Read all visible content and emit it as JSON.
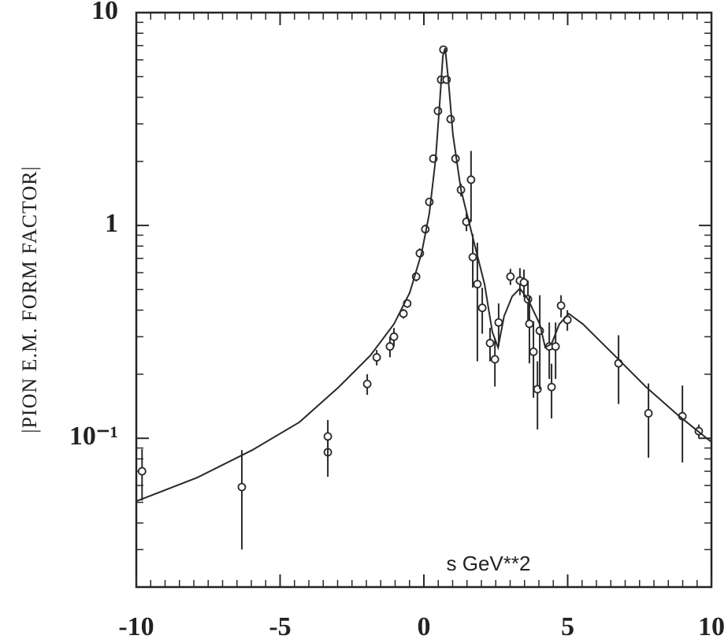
{
  "chart_data": {
    "type": "scatter",
    "ylabel": "|PION E.M. FORM FACTOR|",
    "annotation": "s GeV**2",
    "log_y": true,
    "color": "#2a2a2a",
    "xlim": [
      -10,
      10
    ],
    "ylim": [
      0.02,
      10
    ],
    "xticks": [
      -10,
      -5,
      0,
      5,
      10
    ],
    "yticks": [
      {
        "value": 0.1,
        "label": "10⁻¹"
      },
      1,
      10
    ],
    "xminorticks": [
      -9.5,
      -9,
      -8.5,
      -8,
      -7.5,
      -7,
      -6.5,
      -6,
      -5.5,
      -4.5,
      -4,
      -3.5,
      -3,
      -2.5,
      -2,
      -1.5,
      -1,
      -0.5,
      0.5,
      1,
      1.5,
      2,
      2.5,
      3,
      3.5,
      4,
      4.5,
      5.5,
      6,
      6.5,
      7,
      7.5,
      8,
      8.5,
      9,
      9.5
    ],
    "yminorticks": [
      0.03,
      0.04,
      0.05,
      0.06,
      0.07,
      0.08,
      0.09,
      0.2,
      0.3,
      0.4,
      0.5,
      0.6,
      0.7,
      0.8,
      0.9,
      2,
      3,
      4,
      5,
      6,
      7,
      8,
      9
    ],
    "series": [
      {
        "type": "scatter",
        "x": [
          -9.8,
          -6.33,
          -3.34,
          -3.34,
          -1.97,
          -1.64,
          -1.18,
          -1.04,
          -0.71,
          -0.58,
          -0.27,
          -0.14,
          0.05,
          0.19,
          0.33,
          0.49,
          0.6,
          0.68,
          0.79,
          0.93,
          1.1,
          1.29,
          1.48,
          1.64,
          1.7,
          1.86,
          2.03,
          2.3,
          2.47,
          2.6,
          3.01,
          3.34,
          3.48,
          3.62,
          3.67,
          3.81,
          3.95,
          4.03,
          4.36,
          4.44,
          4.58,
          4.77,
          4.99,
          6.77,
          7.81,
          8.99,
          9.56
        ],
        "values": [
          0.07,
          0.059,
          0.086,
          0.102,
          0.18,
          0.24,
          0.27,
          0.3,
          0.385,
          0.43,
          0.575,
          0.74,
          0.96,
          1.29,
          2.06,
          3.45,
          4.84,
          6.7,
          4.84,
          3.16,
          2.06,
          1.47,
          1.04,
          1.64,
          0.71,
          0.53,
          0.41,
          0.28,
          0.235,
          0.35,
          0.575,
          0.55,
          0.54,
          0.45,
          0.345,
          0.255,
          0.17,
          0.32,
          0.27,
          0.174,
          0.27,
          0.42,
          0.36,
          0.225,
          0.131,
          0.127,
          0.108
        ],
        "errors": [
          0.019,
          0.029,
          0.02,
          0.02,
          0.02,
          0.02,
          0.03,
          0.03,
          0.02,
          0.02,
          0.03,
          0.04,
          0.05,
          0.06,
          0.08,
          0.1,
          0.15,
          0.2,
          0.15,
          0.1,
          0.1,
          0.1,
          0.1,
          0.6,
          0.2,
          0.3,
          0.1,
          0.05,
          0.06,
          0.08,
          0.05,
          0.08,
          0.08,
          0.1,
          0.12,
          0.1,
          0.06,
          0.15,
          0.08,
          0.05,
          0.08,
          0.05,
          0.04,
          0.08,
          0.05,
          0.05,
          0.008
        ]
      },
      {
        "type": "line",
        "x": [
          -10,
          -7.89,
          -5.97,
          -4.33,
          -2.96,
          -1.86,
          -1.04,
          -0.49,
          -0.08,
          0.19,
          0.41,
          0.55,
          0.66,
          0.74,
          0.85,
          1.01,
          1.29,
          1.7,
          2.11,
          2.38,
          2.58,
          2.79,
          3.07,
          3.34,
          3.62,
          4.03,
          4.22,
          4.44,
          4.71,
          5.04,
          5.53,
          6.63,
          7.73,
          8.82,
          10
        ],
        "values": [
          0.0506,
          0.0653,
          0.088,
          0.119,
          0.174,
          0.245,
          0.344,
          0.484,
          0.741,
          1.14,
          2.06,
          3.75,
          6.25,
          6.81,
          4.84,
          2.67,
          1.47,
          0.88,
          0.53,
          0.316,
          0.267,
          0.375,
          0.464,
          0.506,
          0.45,
          0.344,
          0.267,
          0.278,
          0.344,
          0.385,
          0.344,
          0.245,
          0.174,
          0.129,
          0.096
        ]
      }
    ]
  }
}
